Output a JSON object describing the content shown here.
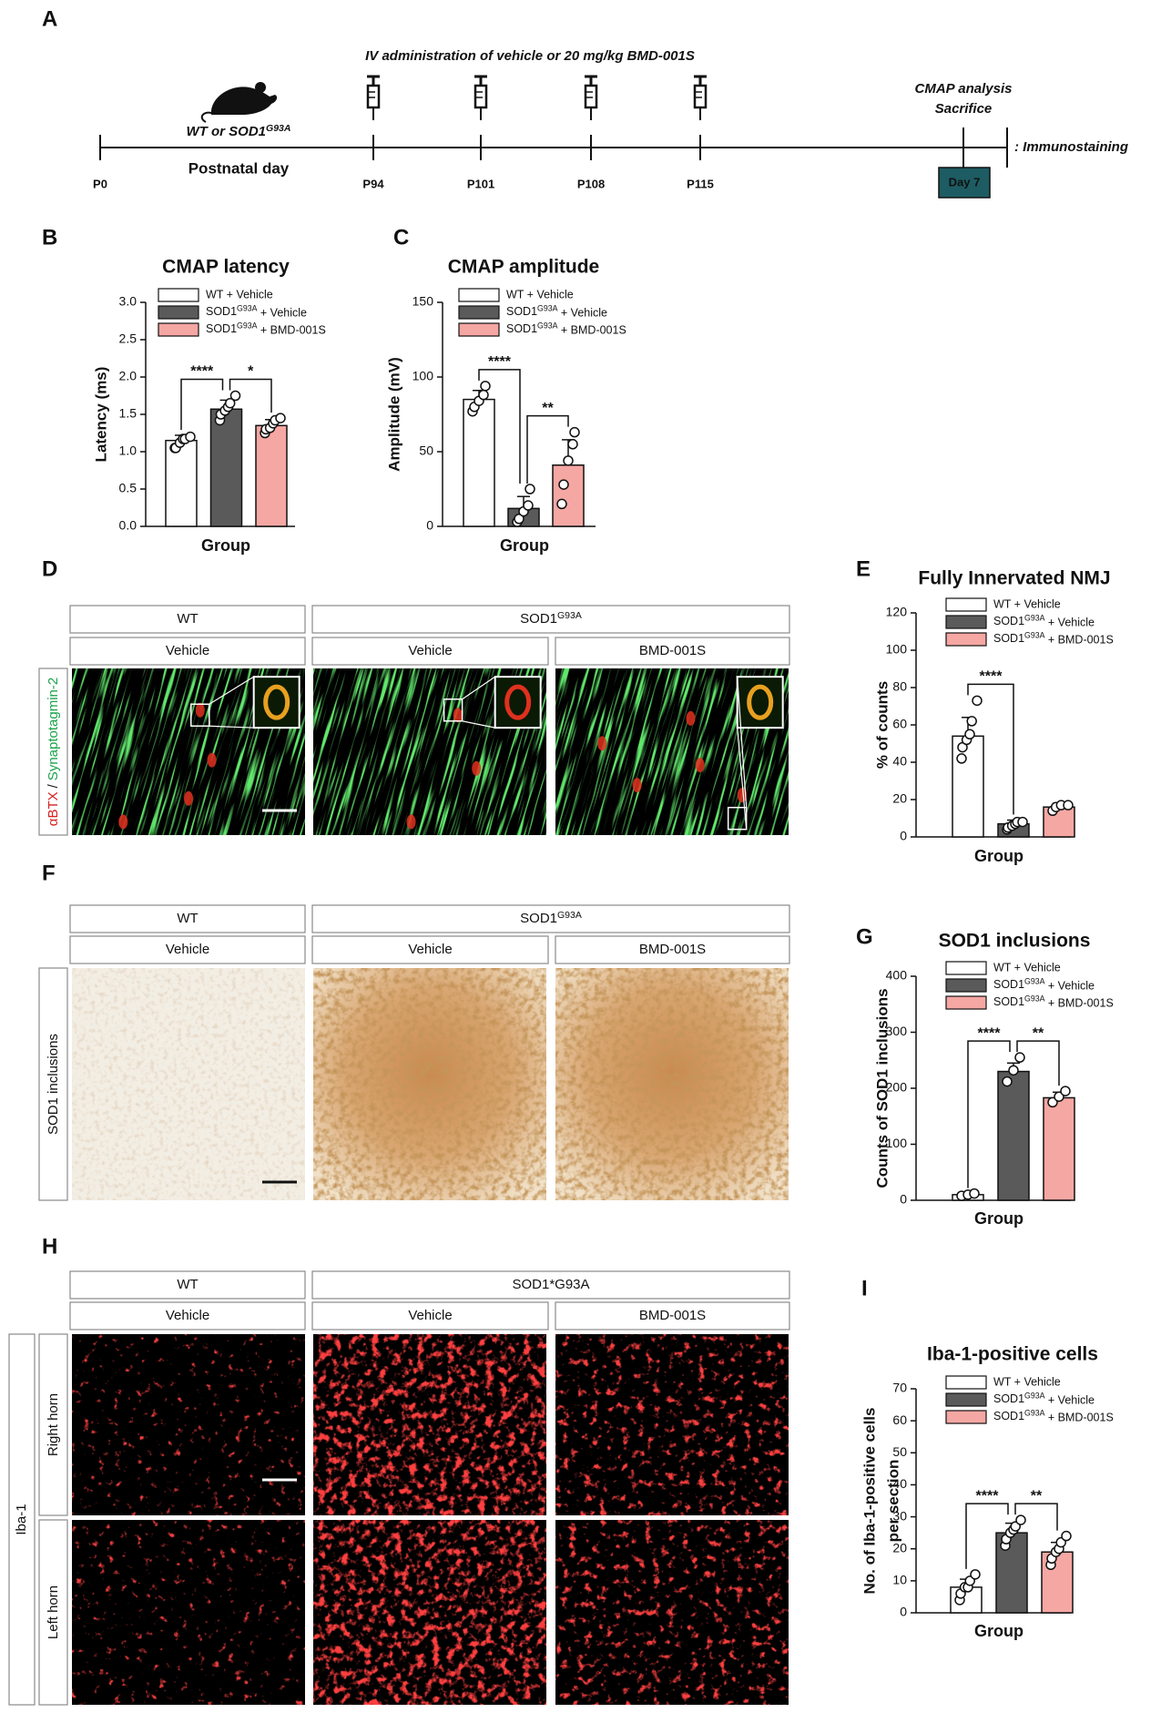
{
  "timeline": {
    "panel": "A",
    "treatment": "IV administration of vehicle or 20 mg/kg BMD-001S",
    "animals": "WT or SOD1G93A",
    "axis_label": "Postnatal day",
    "days": [
      "P0",
      "P94",
      "P101",
      "P108",
      "P115"
    ],
    "endpoint": [
      "CMAP analysis",
      "Sacrifice"
    ],
    "endpoint_day": "Day 7",
    "note": ": Immunostaining"
  },
  "chart_data": [
    {
      "panel": "B",
      "type": "bar",
      "title": "CMAP latency",
      "xlabel": "Group",
      "ylabel": "Latency (ms)",
      "ylim": [
        0,
        3
      ],
      "yticks": [
        {
          "value": 0,
          "label": "0.0"
        },
        0.5,
        {
          "value": 1,
          "label": "1.0"
        },
        1.5,
        {
          "value": 2,
          "label": "2.0"
        },
        2.5,
        {
          "value": 3,
          "label": "3.0"
        }
      ],
      "series": [
        {
          "name": "WT + Vehicle",
          "color": "#ffffff",
          "values": [
            1.15
          ],
          "errors": [
            0.07
          ],
          "points": [
            1.05,
            1.05,
            1.12,
            1.17,
            1.17,
            1.2
          ]
        },
        {
          "name": "SOD1G93A + Vehicle",
          "color": "#5a5a5a",
          "values": [
            1.57
          ],
          "errors": [
            0.12
          ],
          "points": [
            1.42,
            1.5,
            1.55,
            1.6,
            1.65,
            1.75
          ]
        },
        {
          "name": "SOD1G93A + BMD-001S",
          "color": "#f5a7a3",
          "values": [
            1.35
          ],
          "errors": [
            0.08
          ],
          "points": [
            1.25,
            1.3,
            1.32,
            1.38,
            1.42,
            1.45
          ]
        }
      ],
      "significance": [
        {
          "between": [
            0,
            1
          ],
          "label": "****"
        },
        {
          "between": [
            1,
            2
          ],
          "label": "*"
        }
      ]
    },
    {
      "panel": "C",
      "type": "bar",
      "title": "CMAP amplitude",
      "xlabel": "Group",
      "ylabel": "Amplitude (mV)",
      "ylim": [
        0,
        150
      ],
      "yticks": [
        0,
        50,
        100,
        150
      ],
      "series": [
        {
          "name": "WT + Vehicle",
          "color": "#ffffff",
          "values": [
            85
          ],
          "errors": [
            6
          ],
          "points": [
            77,
            80,
            84,
            88,
            94
          ]
        },
        {
          "name": "SOD1G93A + Vehicle",
          "color": "#5a5a5a",
          "values": [
            12
          ],
          "errors": [
            8
          ],
          "points": [
            3,
            5,
            10,
            14,
            25
          ]
        },
        {
          "name": "SOD1G93A + BMD-001S",
          "color": "#f5a7a3",
          "values": [
            41
          ],
          "errors": [
            17
          ],
          "points": [
            15,
            28,
            44,
            55,
            63
          ]
        }
      ],
      "significance": [
        {
          "between": [
            0,
            1
          ],
          "label": "****"
        },
        {
          "between": [
            1,
            2
          ],
          "label": "**"
        }
      ]
    },
    {
      "panel": "E",
      "type": "bar",
      "title": "Fully Innervated NMJ",
      "xlabel": "Group",
      "ylabel": "% of  counts",
      "ylim": [
        0,
        120
      ],
      "yticks": [
        0,
        20,
        40,
        60,
        80,
        100,
        120
      ],
      "series": [
        {
          "name": "WT + Vehicle",
          "color": "#ffffff",
          "values": [
            54
          ],
          "errors": [
            10
          ],
          "points": [
            42,
            48,
            52,
            55,
            62,
            73
          ]
        },
        {
          "name": "SOD1G93A + Vehicle",
          "color": "#5a5a5a",
          "values": [
            7
          ],
          "errors": [
            2
          ],
          "points": [
            4,
            5,
            6,
            7,
            8,
            8
          ]
        },
        {
          "name": "SOD1G93A + BMD-001S",
          "color": "#f5a7a3",
          "values": [
            16
          ],
          "errors": [
            2
          ],
          "points": [
            14,
            16,
            17,
            17
          ]
        }
      ],
      "significance": [
        {
          "between": [
            0,
            1
          ],
          "label": "****"
        }
      ]
    },
    {
      "panel": "G",
      "type": "bar",
      "title": "SOD1 inclusions",
      "xlabel": "Group",
      "ylabel": "Counts of SOD1 inclusions",
      "ylim": [
        0,
        400
      ],
      "yticks": [
        0,
        100,
        200,
        300,
        400
      ],
      "series": [
        {
          "name": "WT + Vehicle",
          "color": "#ffffff",
          "values": [
            10
          ],
          "errors": [
            2
          ],
          "points": [
            8,
            10,
            12
          ]
        },
        {
          "name": "SOD1G93A + Vehicle",
          "color": "#5a5a5a",
          "values": [
            230
          ],
          "errors": [
            15
          ],
          "points": [
            212,
            232,
            255
          ]
        },
        {
          "name": "SOD1G93A + BMD-001S",
          "color": "#f5a7a3",
          "values": [
            183
          ],
          "errors": [
            10
          ],
          "points": [
            175,
            185,
            195
          ]
        }
      ],
      "significance": [
        {
          "between": [
            0,
            1
          ],
          "label": "****"
        },
        {
          "between": [
            1,
            2
          ],
          "label": "**"
        }
      ]
    },
    {
      "panel": "I",
      "type": "bar",
      "title": "Iba-1-positive cells",
      "xlabel": "Group",
      "ylabel": [
        "No. of Iba-1-positive cells",
        "per section"
      ],
      "ylim": [
        0,
        70
      ],
      "yticks": [
        0,
        10,
        20,
        30,
        40,
        50,
        60,
        70
      ],
      "series": [
        {
          "name": "WT + Vehicle",
          "color": "#ffffff",
          "values": [
            8
          ],
          "errors": [
            2.5
          ],
          "points": [
            4,
            6,
            8,
            8,
            10,
            12
          ]
        },
        {
          "name": "SOD1G93A + Vehicle",
          "color": "#5a5a5a",
          "values": [
            25
          ],
          "errors": [
            3
          ],
          "points": [
            21,
            23,
            25,
            26,
            27,
            29
          ]
        },
        {
          "name": "SOD1G93A + BMD-001S",
          "color": "#f5a7a3",
          "values": [
            19
          ],
          "errors": [
            3
          ],
          "points": [
            15,
            17,
            19,
            20,
            22,
            24
          ]
        }
      ],
      "significance": [
        {
          "between": [
            0,
            1
          ],
          "label": "****"
        },
        {
          "between": [
            1,
            2
          ],
          "label": "**"
        }
      ]
    }
  ],
  "image_panels": [
    {
      "panel": "D",
      "genotypes": [
        "WT",
        "SOD1G93A"
      ],
      "conditions": [
        "Vehicle",
        "Vehicle",
        "BMD-001S"
      ],
      "stain": [
        "αBTX",
        "/",
        "Synaptotagmin-2"
      ]
    },
    {
      "panel": "F",
      "genotypes": [
        "WT",
        "SOD1G93A"
      ],
      "conditions": [
        "Vehicle",
        "Vehicle",
        "BMD-001S"
      ],
      "stain": [
        "SOD1 inclusions"
      ]
    },
    {
      "panel": "H",
      "genotypes": [
        "WT",
        "SOD1*G93A"
      ],
      "conditions": [
        "Vehicle",
        "Vehicle",
        "BMD-001S"
      ],
      "stain": [
        "Iba-1"
      ],
      "rows": [
        "Right horn",
        "Left horn"
      ]
    }
  ]
}
